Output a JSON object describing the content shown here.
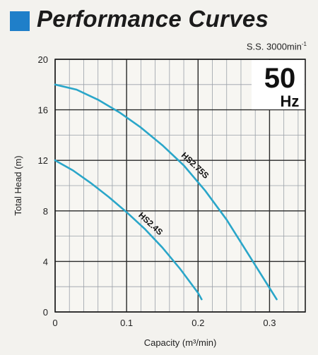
{
  "header": {
    "title": "Performance Curves",
    "speed_text": "S.S. 3000min",
    "speed_exponent": "-1"
  },
  "frequency": {
    "value": "50",
    "unit": "Hz"
  },
  "colors": {
    "curve": "#2aa6c9",
    "title_square": "#1f7fc9"
  },
  "chart_data": {
    "type": "line",
    "xlabel": "Capacity (m³/min)",
    "ylabel": "Total Head (m)",
    "xlim": [
      0,
      0.35
    ],
    "ylim": [
      0,
      20
    ],
    "x_ticks": [
      0,
      0.1,
      0.2,
      0.3
    ],
    "x_tick_labels": [
      "0",
      "0.1",
      "0.2",
      "0.3"
    ],
    "y_ticks": [
      0,
      4,
      8,
      12,
      16,
      20
    ],
    "y_tick_labels": [
      "0",
      "4",
      "8",
      "12",
      "16",
      "20"
    ],
    "grid": true,
    "series": [
      {
        "name": "HS2.75S",
        "x": [
          0,
          0.03,
          0.06,
          0.09,
          0.12,
          0.15,
          0.18,
          0.21,
          0.24,
          0.27,
          0.3,
          0.31
        ],
        "y": [
          18.0,
          17.6,
          16.8,
          15.8,
          14.6,
          13.2,
          11.6,
          9.6,
          7.3,
          4.6,
          1.9,
          1.0
        ]
      },
      {
        "name": "HS2.4S",
        "x": [
          0,
          0.025,
          0.05,
          0.075,
          0.1,
          0.125,
          0.15,
          0.175,
          0.2,
          0.205
        ],
        "y": [
          12.0,
          11.2,
          10.2,
          9.1,
          7.9,
          6.6,
          5.1,
          3.4,
          1.5,
          1.0
        ]
      }
    ]
  }
}
